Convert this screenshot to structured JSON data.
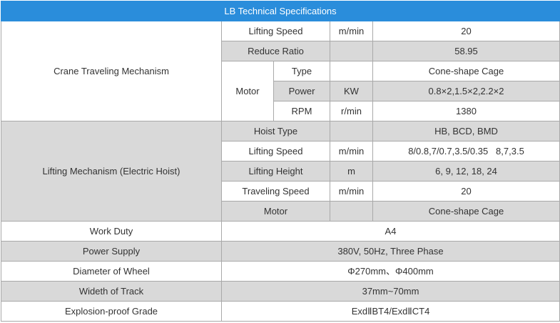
{
  "table": {
    "title": "LB Technical Specifications",
    "rows": [
      [
        "Crane Traveling Mechanism",
        "Lifting Speed",
        "m/min",
        "20"
      ],
      [
        "Reduce Ratio",
        "58.95"
      ],
      [
        "Motor",
        "Type",
        "Cone-shape Cage"
      ],
      [
        "Power",
        "KW",
        "0.8×2,1.5×2,2.2×2"
      ],
      [
        "RPM",
        "r/min",
        "1380"
      ],
      [
        "Lifting Mechanism (Electric Hoist)",
        "Hoist Type",
        "HB, BCD, BMD"
      ],
      [
        "Lifting Speed",
        "m/min",
        "8/0.8,7/0.7,3.5/0.35   8,7,3.5"
      ],
      [
        "Lifting Height",
        "m",
        "6, 9, 12, 18, 24"
      ],
      [
        "Traveling Speed",
        "m/min",
        "20"
      ],
      [
        "Motor",
        "Cone-shape Cage"
      ],
      [
        "Work Duty",
        "A4"
      ],
      [
        "Power Supply",
        "380V, 50Hz, Three Phase"
      ],
      [
        "Diameter of Wheel",
        "Φ270mm、Φ400mm"
      ],
      [
        "Wideth of Track",
        "37mm~70mm"
      ],
      [
        "Explosion-proof Grade",
        "ExdⅡBT4/ExdⅡCT4"
      ]
    ]
  }
}
